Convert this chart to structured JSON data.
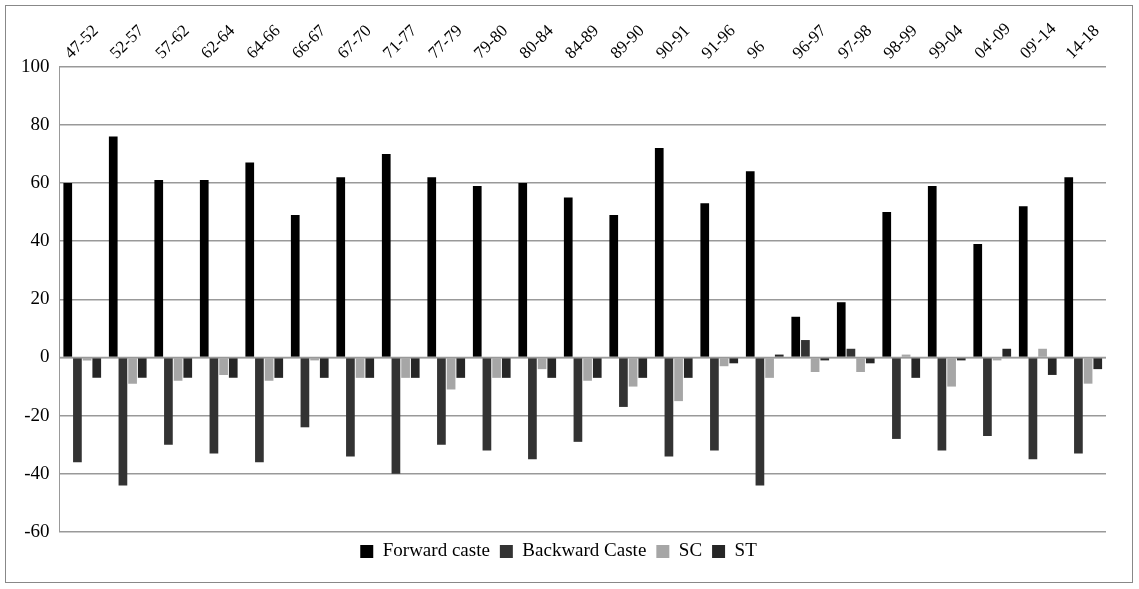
{
  "chart_data": {
    "type": "bar",
    "categories": [
      "47-52",
      "52-57",
      "57-62",
      "62-64",
      "64-66",
      "66-67",
      "67-70",
      "71-77",
      "77-79",
      "79-80",
      "80-84",
      "84-89",
      "89-90",
      "90-91",
      "91-96",
      "96",
      "96-97",
      "97-98",
      "98-99",
      "99-04",
      "04'-09",
      "09'-14",
      "14-18"
    ],
    "series": [
      {
        "name": "Forward caste",
        "color": "#000000",
        "values": [
          60,
          76,
          61,
          61,
          67,
          49,
          62,
          70,
          62,
          59,
          60,
          55,
          49,
          72,
          53,
          64,
          14,
          19,
          50,
          59,
          39,
          52,
          62
        ]
      },
      {
        "name": "Backward Caste",
        "color": "#333333",
        "values": [
          -36,
          -44,
          -30,
          -33,
          -36,
          -24,
          -34,
          -40,
          -30,
          -32,
          -35,
          -29,
          -17,
          -34,
          -32,
          -44,
          6,
          3,
          -28,
          -32,
          -27,
          -35,
          -33
        ]
      },
      {
        "name": "SC",
        "color": "#a6a6a6",
        "values": [
          -1,
          -9,
          -8,
          -6,
          -8,
          -1,
          -7,
          -7,
          -11,
          -7,
          -4,
          -8,
          -10,
          -15,
          -3,
          -7,
          -5,
          -5,
          1,
          -10,
          -1,
          3,
          -9
        ]
      },
      {
        "name": "ST",
        "color": "#262626",
        "values": [
          -7,
          -7,
          -7,
          -7,
          -7,
          -7,
          -7,
          -7,
          -7,
          -7,
          -7,
          -7,
          -7,
          -7,
          -2,
          1,
          -1,
          -2,
          -7,
          -1,
          3,
          -6,
          -4
        ]
      }
    ],
    "ylim": [
      -60,
      100
    ],
    "yticks": [
      -60,
      -40,
      -20,
      0,
      20,
      40,
      60,
      80,
      100
    ],
    "grid": "y",
    "legend": "bottom"
  }
}
